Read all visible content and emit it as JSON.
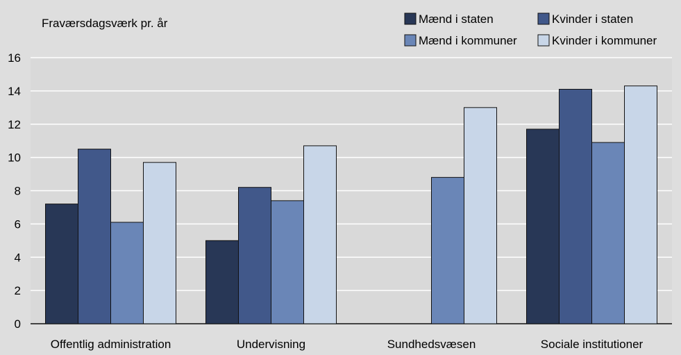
{
  "chart_data": {
    "type": "bar",
    "ylabel": "Fraværsdagsværk pr. år",
    "ylim": [
      0,
      16
    ],
    "yticks": [
      0,
      2,
      4,
      6,
      8,
      10,
      12,
      14,
      16
    ],
    "grid": true,
    "legend_position": "top-right",
    "categories": [
      "Offentlig administration",
      "Undervisning",
      "Sundhedsvæsen",
      "Sociale institutioner"
    ],
    "series": [
      {
        "name": "Mænd i staten",
        "color": "#283756",
        "values": [
          7.2,
          5.0,
          null,
          11.7
        ]
      },
      {
        "name": "Kvinder i staten",
        "color": "#41588a",
        "values": [
          10.5,
          8.2,
          null,
          14.1
        ]
      },
      {
        "name": "Mænd i kommuner",
        "color": "#6a86b7",
        "values": [
          6.1,
          7.4,
          8.8,
          10.9
        ]
      },
      {
        "name": "Kvinder i kommuner",
        "color": "#c8d6e8",
        "values": [
          9.7,
          10.7,
          13.0,
          14.3
        ]
      }
    ]
  },
  "colors": {
    "page_background": "#dedede",
    "plot_background": "#d9d9d9",
    "gridline": "#ffffff",
    "bar_outline": "#111111"
  }
}
